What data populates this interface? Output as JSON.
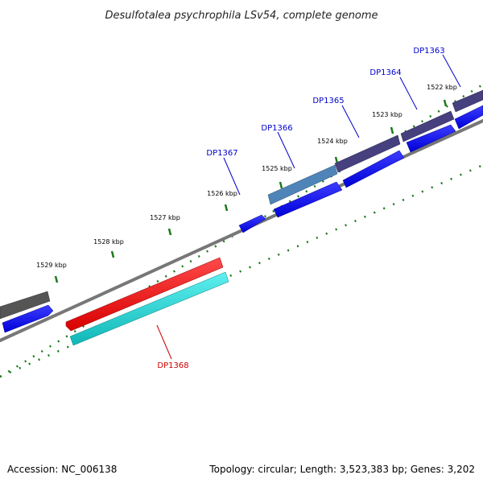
{
  "title": "Desulfotalea psychrophila LSv54, complete genome",
  "footer": {
    "accession": "Accession: NC_006138",
    "summary": "Topology: circular; Length: 3,523,383 bp; Genes: 3,202"
  },
  "tick_labels": [
    "1522 kbp",
    "1523 kbp",
    "1524 kbp",
    "1525 kbp",
    "1526 kbp",
    "1527 kbp",
    "1528 kbp",
    "1529 kbp"
  ],
  "gene_labels": [
    {
      "text": "DP1363",
      "color": "#0000cc"
    },
    {
      "text": "DP1364",
      "color": "#0000cc"
    },
    {
      "text": "DP1365",
      "color": "#0000cc"
    },
    {
      "text": "DP1366",
      "color": "#0000cc"
    },
    {
      "text": "DP1367",
      "color": "#0000cc"
    },
    {
      "text": "DP1368",
      "color": "#cc0000"
    }
  ],
  "colors": {
    "backbone": "#777777",
    "ticks": "#1a7a1a",
    "cds_blue": "#0000ff",
    "cog_purple": "#46407e",
    "cog_steel": "#4f84b8",
    "cog_gray": "#555555",
    "rev_red": "#ff0000",
    "rev_cyan": "#1fd0d0"
  }
}
